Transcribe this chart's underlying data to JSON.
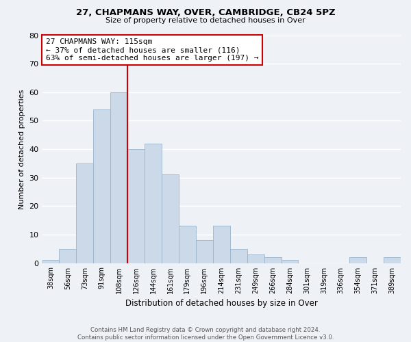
{
  "title": "27, CHAPMANS WAY, OVER, CAMBRIDGE, CB24 5PZ",
  "subtitle": "Size of property relative to detached houses in Over",
  "xlabel": "Distribution of detached houses by size in Over",
  "ylabel": "Number of detached properties",
  "bar_labels": [
    "38sqm",
    "56sqm",
    "73sqm",
    "91sqm",
    "108sqm",
    "126sqm",
    "144sqm",
    "161sqm",
    "179sqm",
    "196sqm",
    "214sqm",
    "231sqm",
    "249sqm",
    "266sqm",
    "284sqm",
    "301sqm",
    "319sqm",
    "336sqm",
    "354sqm",
    "371sqm",
    "389sqm"
  ],
  "bar_values": [
    1,
    5,
    35,
    54,
    60,
    40,
    42,
    31,
    13,
    8,
    13,
    5,
    3,
    2,
    1,
    0,
    0,
    0,
    2,
    0,
    2
  ],
  "bar_color": "#ccd9e8",
  "bar_edge_color": "#9ab4cc",
  "vline_x": 4.5,
  "vline_color": "#cc0000",
  "annotation_title": "27 CHAPMANS WAY: 115sqm",
  "annotation_line1": "← 37% of detached houses are smaller (116)",
  "annotation_line2": "63% of semi-detached houses are larger (197) →",
  "annotation_box_color": "#ffffff",
  "annotation_box_edge": "#cc0000",
  "ylim": [
    0,
    80
  ],
  "yticks": [
    0,
    10,
    20,
    30,
    40,
    50,
    60,
    70,
    80
  ],
  "footer1": "Contains HM Land Registry data © Crown copyright and database right 2024.",
  "footer2": "Contains public sector information licensed under the Open Government Licence v3.0.",
  "bg_color": "#eef2f7",
  "grid_color": "#ffffff"
}
